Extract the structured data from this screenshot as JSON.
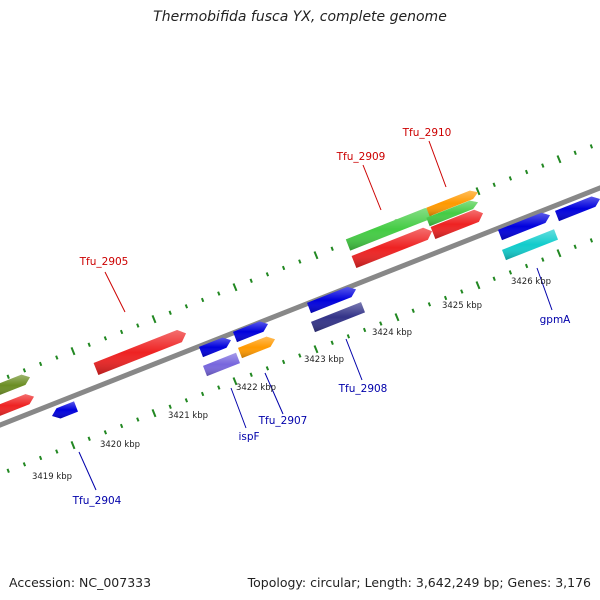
{
  "title": "Thermobifida fusca YX, complete genome",
  "accession": "Accession: NC_007333",
  "summary": "Topology: circular; Length: 3,642,249 bp; Genes: 3,176",
  "colors": {
    "red": "#ee2222",
    "green": "#44cc44",
    "olive": "#6b8e23",
    "orange": "#ff9900",
    "blue": "#0000dd",
    "lavender": "#7766dd",
    "navy": "#333388",
    "cyan": "#11cccc",
    "backbone": "#888888",
    "ticks": "#228822",
    "label_red": "#cc0000",
    "label_blue": "#0000aa"
  },
  "scale_labels": [
    "3419 kbp",
    "3420 kbp",
    "3421 kbp",
    "3422 kbp",
    "3423 kbp",
    "3424 kbp",
    "3425 kbp",
    "3426 kbp"
  ],
  "gene_labels": [
    {
      "text": "Tfu_2905",
      "color": "red"
    },
    {
      "text": "Tfu_2909",
      "color": "red"
    },
    {
      "text": "Tfu_2910",
      "color": "red"
    },
    {
      "text": "Tfu_2904",
      "color": "blue"
    },
    {
      "text": "ispF",
      "color": "blue"
    },
    {
      "text": "Tfu_2907",
      "color": "blue"
    },
    {
      "text": "Tfu_2908",
      "color": "blue"
    },
    {
      "text": "gpmA",
      "color": "blue"
    }
  ]
}
